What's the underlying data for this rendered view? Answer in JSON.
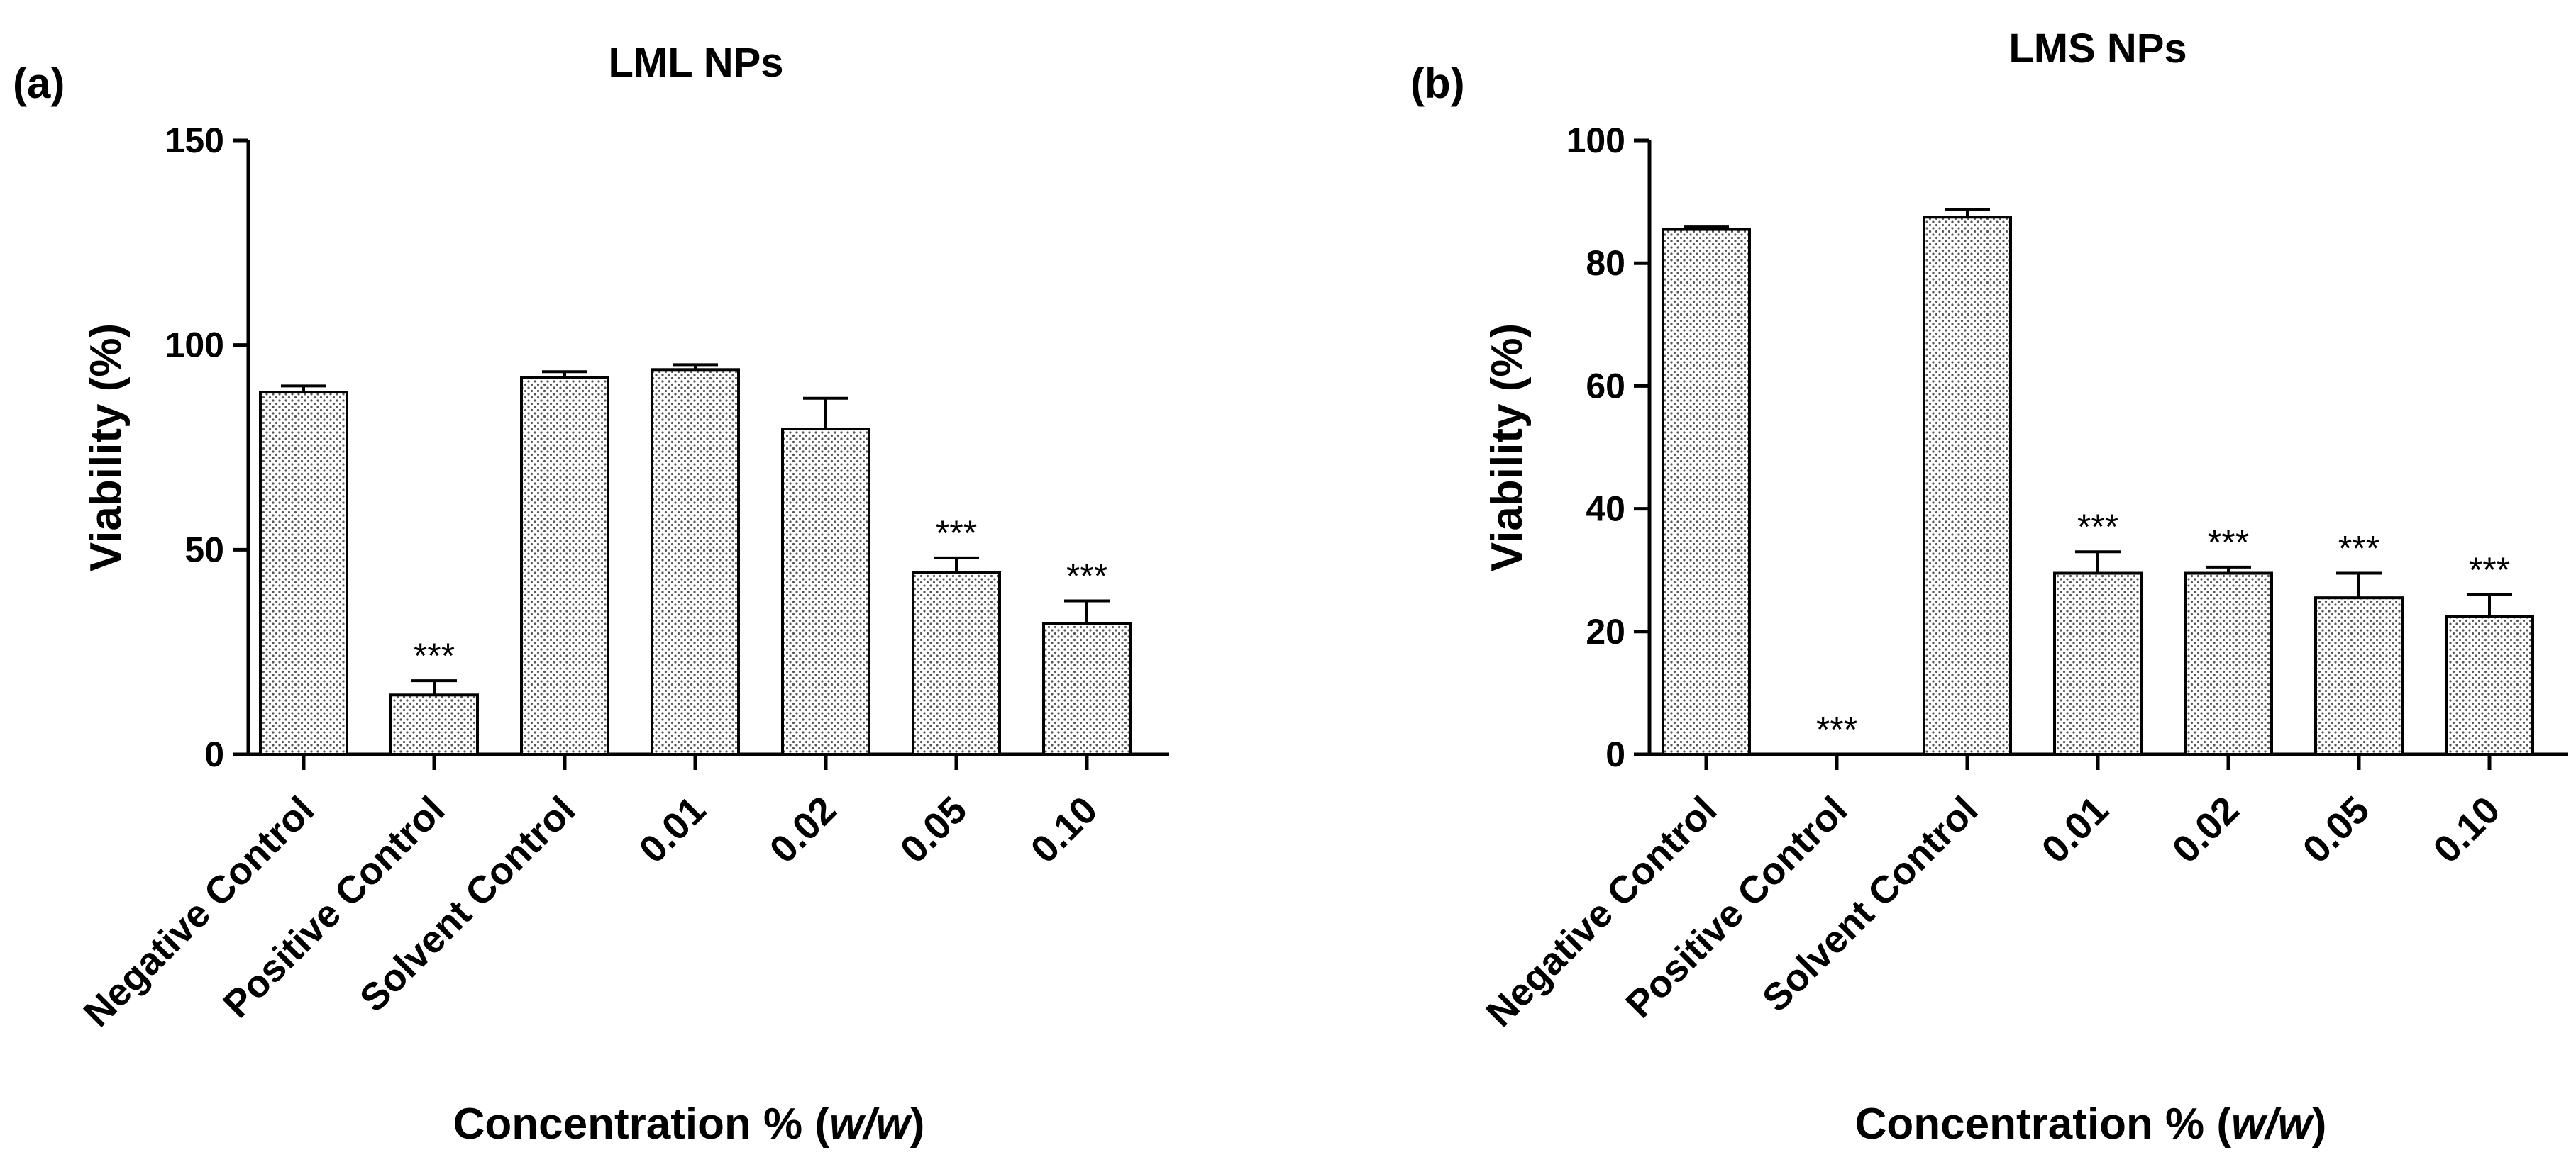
{
  "chart_data": [
    {
      "type": "bar",
      "panel": "(a)",
      "title": "LML NPs",
      "xlabel": "Concentration % (w/w)",
      "xlabel_parts": [
        "Concentration % (",
        "w/w",
        ")"
      ],
      "ylabel": "Viability (%)",
      "ylim": [
        0,
        150
      ],
      "yticks": [
        0,
        50,
        100,
        150
      ],
      "categories": [
        "Negative Control",
        "Positive Control",
        "Solvent Control",
        "0.01",
        "0.02",
        "0.05",
        "0.10"
      ],
      "values": [
        88.5,
        14.5,
        92,
        94,
        79.5,
        44.5,
        32
      ],
      "errors": [
        1.5,
        3.5,
        1.5,
        1.2,
        7.5,
        3.5,
        5.5
      ],
      "annotations": [
        "",
        "***",
        "",
        "",
        "",
        "***",
        "***"
      ],
      "grid": false,
      "bar_pattern": "dotted"
    },
    {
      "type": "bar",
      "panel": "(b)",
      "title": "LMS NPs",
      "xlabel": "Concentration % (w/w)",
      "xlabel_parts": [
        "Concentration % (",
        "w/w",
        ")"
      ],
      "ylabel": "Viability (%)",
      "ylim": [
        0,
        100
      ],
      "yticks": [
        0,
        20,
        40,
        60,
        80,
        100
      ],
      "categories": [
        "Negative Control",
        "Positive Control",
        "Solvent Control",
        "0.01",
        "0.02",
        "0.05",
        "0.10"
      ],
      "values": [
        85.5,
        0,
        87.5,
        29.5,
        29.5,
        25.5,
        22.5
      ],
      "errors": [
        0.4,
        0,
        1.2,
        3.5,
        1.0,
        4.0,
        3.5
      ],
      "annotations": [
        "",
        "***",
        "",
        "***",
        "***",
        "***",
        "***"
      ],
      "grid": false,
      "bar_pattern": "dotted"
    }
  ]
}
